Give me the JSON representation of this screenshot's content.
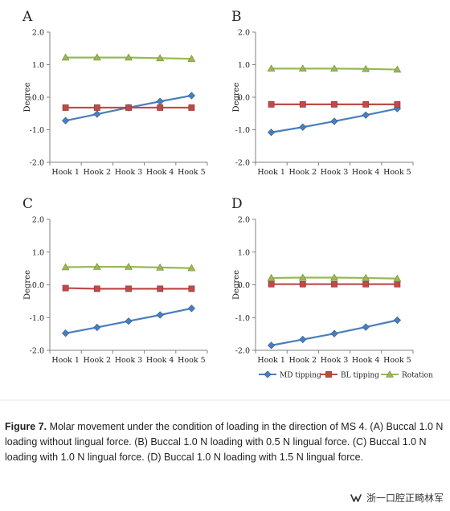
{
  "chart_data": [
    {
      "type": "line",
      "panel_label": "A",
      "categories": [
        "Hook 1",
        "Hook 2",
        "Hook 3",
        "Hook 4",
        "Hook 5"
      ],
      "ylabel": "Degree",
      "ylim": [
        -2.0,
        2.0
      ],
      "yticks": [
        "2.0",
        "1.0",
        "0.0",
        "-1.0",
        "-2.0"
      ],
      "series": [
        {
          "name": "MD tipping",
          "values": [
            -0.72,
            -0.52,
            -0.32,
            -0.13,
            0.05
          ]
        },
        {
          "name": "BL tipping",
          "values": [
            -0.32,
            -0.32,
            -0.32,
            -0.32,
            -0.32
          ]
        },
        {
          "name": "Rotation",
          "values": [
            1.22,
            1.22,
            1.22,
            1.2,
            1.18
          ]
        }
      ]
    },
    {
      "type": "line",
      "panel_label": "B",
      "categories": [
        "Hook 1",
        "Hook 2",
        "Hook 3",
        "Hook 4",
        "Hook 5"
      ],
      "ylabel": "Degree",
      "ylim": [
        -2.0,
        2.0
      ],
      "yticks": [
        "2.0",
        "1.0",
        "0.0",
        "-1.0",
        "-2.0"
      ],
      "series": [
        {
          "name": "MD tipping",
          "values": [
            -1.08,
            -0.92,
            -0.74,
            -0.55,
            -0.35
          ]
        },
        {
          "name": "BL tipping",
          "values": [
            -0.22,
            -0.22,
            -0.22,
            -0.22,
            -0.22
          ]
        },
        {
          "name": "Rotation",
          "values": [
            0.88,
            0.88,
            0.88,
            0.87,
            0.85
          ]
        }
      ]
    },
    {
      "type": "line",
      "panel_label": "C",
      "categories": [
        "Hook 1",
        "Hook 2",
        "Hook 3",
        "Hook 4",
        "Hook 5"
      ],
      "ylabel": "Degree",
      "ylim": [
        -2.0,
        2.0
      ],
      "yticks": [
        "2.0",
        "1.0",
        "0.0",
        "-1.0",
        "-2.0"
      ],
      "series": [
        {
          "name": "MD tipping",
          "values": [
            -1.48,
            -1.3,
            -1.11,
            -0.92,
            -0.72
          ]
        },
        {
          "name": "BL tipping",
          "values": [
            -0.1,
            -0.12,
            -0.12,
            -0.12,
            -0.12
          ]
        },
        {
          "name": "Rotation",
          "values": [
            0.54,
            0.55,
            0.55,
            0.53,
            0.51
          ]
        }
      ]
    },
    {
      "type": "line",
      "panel_label": "D",
      "categories": [
        "Hook 1",
        "Hook 2",
        "Hook 3",
        "Hook 4",
        "Hook 5"
      ],
      "ylabel": "Degree",
      "ylim": [
        -2.0,
        2.0
      ],
      "yticks": [
        "2.0",
        "1.0",
        "0.0",
        "-1.0",
        "-2.0"
      ],
      "series": [
        {
          "name": "MD tipping",
          "values": [
            -1.85,
            -1.67,
            -1.49,
            -1.29,
            -1.08
          ]
        },
        {
          "name": "BL tipping",
          "values": [
            0.02,
            0.02,
            0.02,
            0.02,
            0.02
          ]
        },
        {
          "name": "Rotation",
          "values": [
            0.21,
            0.22,
            0.22,
            0.21,
            0.19
          ]
        }
      ]
    }
  ],
  "legend": {
    "items": [
      {
        "name": "MD tipping",
        "color": "#4a7ebb",
        "marker": "diamond"
      },
      {
        "name": "BL tipping",
        "color": "#be4b48",
        "marker": "square"
      },
      {
        "name": "Rotation",
        "color": "#98b954",
        "marker": "triangle"
      }
    ]
  },
  "caption": {
    "label": "Figure 7.",
    "text": " Molar movement under the condition of loading in the direction of MS 4. (A) Buccal 1.0 N loading without lingual force. (B) Buccal 1.0 N loading with 0.5 N lingual force. (C) Buccal 1.0 N loading with 1.0 N lingual force. (D) Buccal 1.0 N loading with 1.5 N lingual force."
  },
  "watermark": {
    "text": "浙一口腔正畸林军",
    "icon": "wechat-channel-icon"
  },
  "colors": {
    "md": "#4a7ebb",
    "bl": "#be4b48",
    "rotation": "#98b954",
    "axis": "#808080",
    "text": "#222222"
  }
}
